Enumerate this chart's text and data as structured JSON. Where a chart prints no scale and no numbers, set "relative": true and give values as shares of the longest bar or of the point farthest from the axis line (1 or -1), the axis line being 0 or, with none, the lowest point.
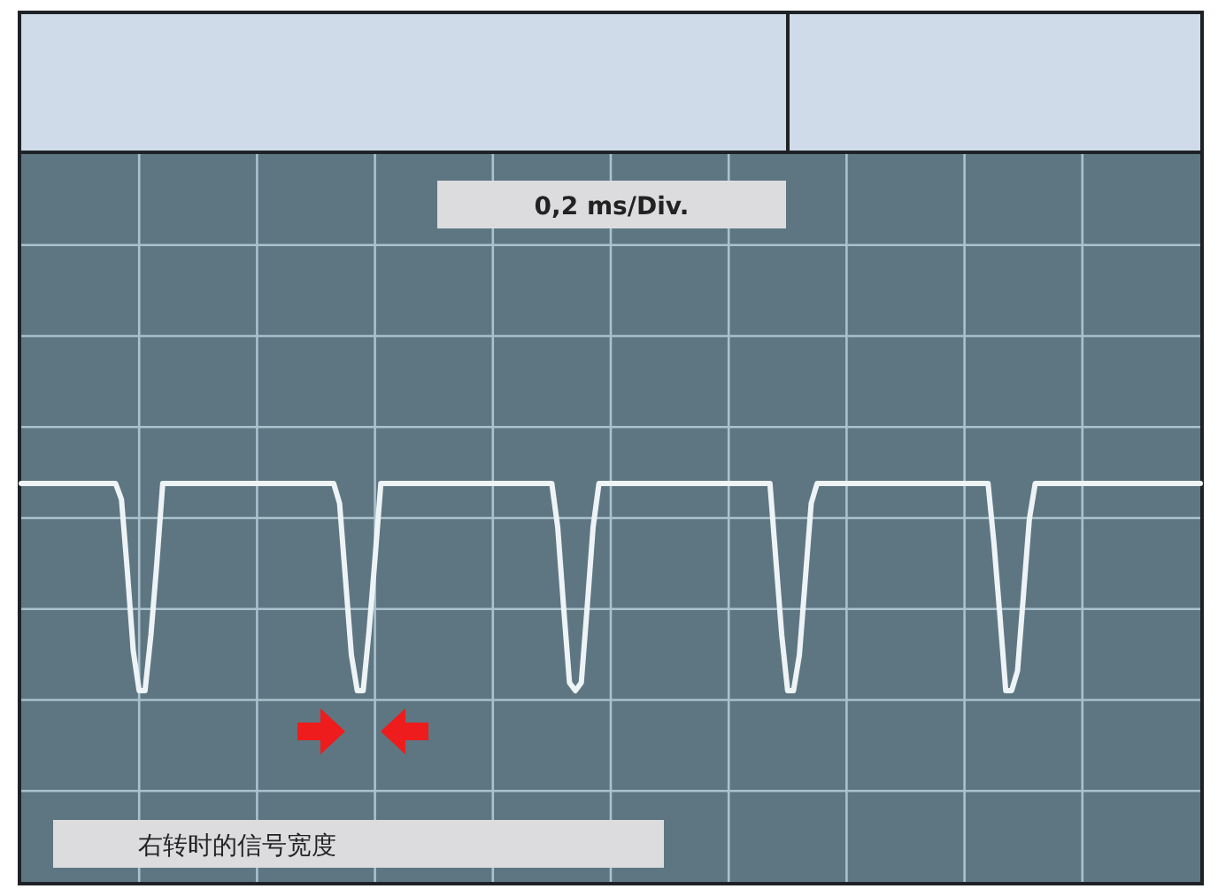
{
  "chart_data": {
    "type": "line",
    "relative": true,
    "grid": true,
    "marker": "none",
    "line_style": "solid",
    "annotations": [
      "0,2 ms/Div.",
      "右转时的信号宽度"
    ],
    "categories": [
      null,
      null,
      null,
      null,
      null,
      null,
      null,
      null,
      null,
      null,
      null,
      null,
      null,
      null,
      null,
      null,
      null,
      null,
      null,
      null,
      null,
      null,
      null,
      null,
      null,
      null,
      null,
      null,
      null,
      null,
      null,
      null,
      null,
      null,
      null,
      null,
      null,
      null,
      null,
      null,
      null,
      null,
      null,
      null,
      null,
      null,
      null,
      null,
      null,
      null,
      null,
      null,
      null,
      null,
      null,
      null,
      null,
      null,
      null,
      null,
      null,
      null,
      null,
      null,
      null,
      null,
      null,
      null,
      null,
      null,
      null,
      null,
      null,
      null,
      null,
      null,
      null,
      null,
      null,
      null,
      null,
      null,
      null,
      null,
      null,
      null,
      null,
      null,
      null,
      null,
      null,
      null,
      null,
      null,
      null,
      null,
      null,
      null,
      null,
      null,
      null,
      null,
      null,
      null,
      null,
      null,
      null,
      null,
      null,
      null,
      null,
      null,
      null,
      null,
      null,
      null,
      null,
      null,
      null,
      null,
      null,
      null,
      null,
      null,
      null,
      null,
      null,
      null,
      null,
      null,
      null,
      null,
      null,
      null,
      null,
      null,
      null,
      null,
      null,
      null,
      null,
      null,
      null,
      null,
      null,
      null,
      null,
      null,
      null,
      null,
      null,
      null,
      null,
      null,
      null,
      null,
      null,
      null,
      null,
      null,
      null,
      null,
      null,
      null,
      null,
      null,
      null,
      null,
      null,
      null,
      null,
      null,
      null,
      null,
      null,
      null,
      null,
      null,
      null,
      null,
      null,
      null,
      null,
      null,
      null,
      null,
      null,
      null,
      null,
      null,
      null,
      null,
      null,
      null,
      null,
      null,
      null,
      null,
      null,
      null,
      null
    ],
    "series": [
      {
        "color": "#eef3f5",
        "values": [
          1,
          1,
          1,
          1,
          1,
          1,
          1,
          1,
          1,
          1,
          1,
          1,
          1,
          1,
          1,
          1,
          1,
          0.96,
          0.78,
          0.58,
          0.48,
          0.48,
          0.62,
          0.8,
          1,
          1,
          1,
          1,
          1,
          1,
          1,
          1,
          1,
          1,
          1,
          1,
          1,
          1,
          1,
          1,
          1,
          1,
          1,
          1,
          1,
          1,
          1,
          1,
          1,
          1,
          1,
          1,
          1,
          1,
          0.95,
          0.76,
          0.57,
          0.48,
          0.48,
          0.63,
          0.81,
          1,
          1,
          1,
          1,
          1,
          1,
          1,
          1,
          1,
          1,
          1,
          1,
          1,
          1,
          1,
          1,
          1,
          1,
          1,
          1,
          1,
          1,
          1,
          1,
          1,
          1,
          1,
          1,
          1,
          1,
          0.89,
          0.69,
          0.5,
          0.48,
          0.5,
          0.69,
          0.89,
          1,
          1,
          1,
          1,
          1,
          1,
          1,
          1,
          1,
          1,
          1,
          1,
          1,
          1,
          1,
          1,
          1,
          1,
          1,
          1,
          1,
          1,
          1,
          1,
          1,
          1,
          1,
          1,
          1,
          1,
          0.81,
          0.62,
          0.48,
          0.48,
          0.57,
          0.76,
          0.95,
          1,
          1,
          1,
          1,
          1,
          1,
          1,
          1,
          1,
          1,
          1,
          1,
          1,
          1,
          1,
          1,
          1,
          1,
          1,
          1,
          1,
          1,
          1,
          1,
          1,
          1,
          1,
          1,
          1,
          1,
          0.85,
          0.67,
          0.48,
          0.48,
          0.53,
          0.72,
          0.91,
          1,
          1,
          1,
          1,
          1,
          1,
          1,
          1,
          1,
          1,
          1,
          1,
          1,
          1,
          1,
          1,
          1,
          1,
          1,
          1,
          1,
          1,
          1,
          1,
          1,
          1,
          1,
          1,
          1
        ]
      }
    ]
  }
}
